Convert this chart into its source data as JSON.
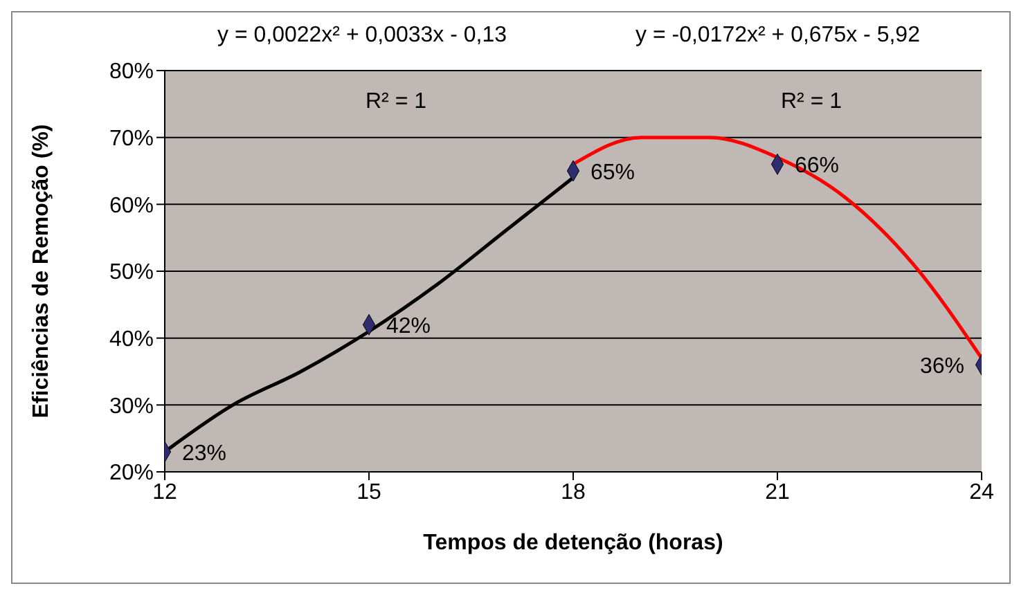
{
  "chart_data": {
    "type": "scatter",
    "xlabel": "Tempos de detenção (horas)",
    "ylabel": "Eficiências de Remoção (%)",
    "xlim": [
      12,
      24
    ],
    "xticks": [
      12,
      15,
      18,
      21,
      24
    ],
    "ylim": [
      20,
      80
    ],
    "yticks": [
      {
        "value": 20,
        "label": "20%"
      },
      {
        "value": 30,
        "label": "30%"
      },
      {
        "value": 40,
        "label": "40%"
      },
      {
        "value": 50,
        "label": "50%"
      },
      {
        "value": 60,
        "label": "60%"
      },
      {
        "value": 70,
        "label": "70%"
      },
      {
        "value": 80,
        "label": "80%"
      }
    ],
    "grid": "y",
    "legend": false,
    "annotations": [
      "y = 0,0022x² + 0,0033x - 0,13",
      "R² = 1",
      "y = -0,0172x² + 0,675x - 5,92",
      "R² = 1"
    ],
    "series": [
      {
        "type": "line",
        "color": "#000000",
        "marker": "none",
        "x": [
          12,
          13,
          14,
          15,
          16,
          17,
          18
        ],
        "values": [
          23,
          30,
          35,
          41,
          48,
          56,
          64
        ]
      },
      {
        "type": "line",
        "color": "#ff0000",
        "marker": "none",
        "x": [
          18,
          19,
          20,
          21,
          22,
          23,
          24
        ],
        "values": [
          66,
          70,
          70,
          67,
          61,
          51,
          37
        ]
      },
      {
        "color": "#2e2d72",
        "marker": "diamond",
        "x": [
          12,
          15,
          18,
          21,
          24
        ],
        "values": [
          23,
          42,
          65,
          66,
          36
        ],
        "value_labels": [
          "23%",
          "42%",
          "65%",
          "66%",
          "36%"
        ]
      }
    ]
  }
}
